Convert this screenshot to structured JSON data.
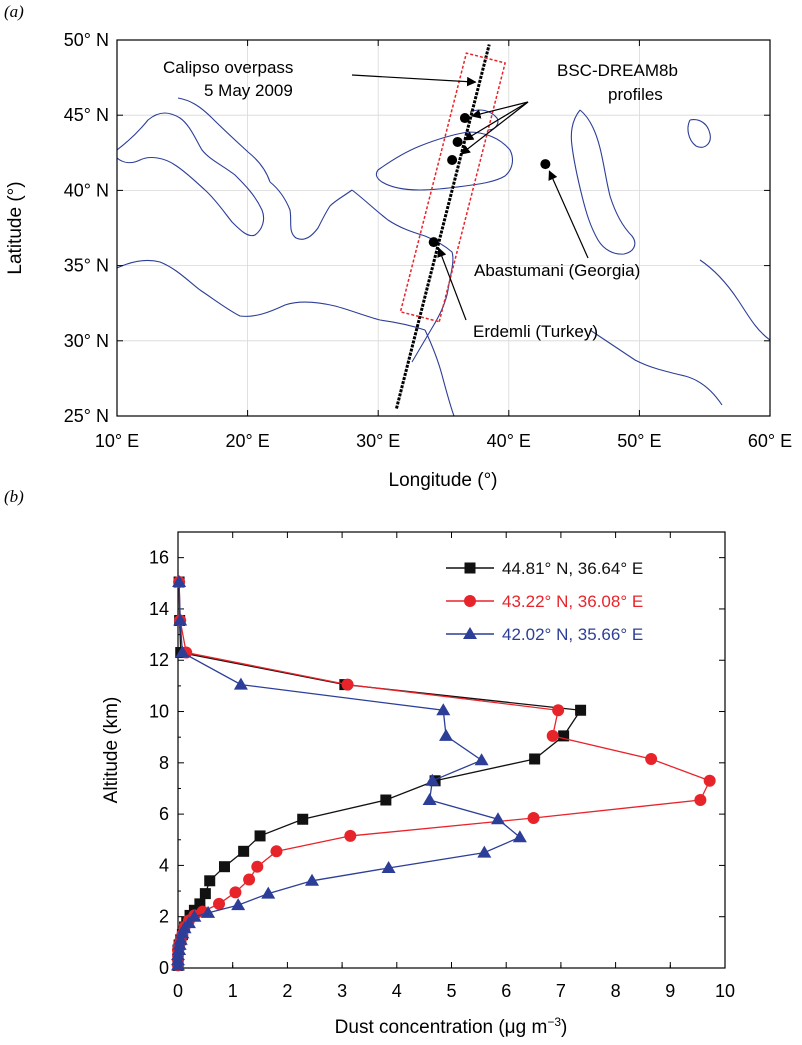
{
  "chart_data": [
    {
      "panel": "(a)",
      "type": "map",
      "xlabel": "Longitude (°)",
      "ylabel": "Latitude (°)",
      "xlim": [
        10,
        60
      ],
      "ylim": [
        25,
        50
      ],
      "x_tick_labels": [
        "10° E",
        "20° E",
        "30° E",
        "40° E",
        "50° E",
        "60° E"
      ],
      "y_tick_labels": [
        "25° N",
        "30° N",
        "35° N",
        "40° N",
        "45° N",
        "50° N"
      ],
      "annotations": [
        {
          "text": "Calipso overpass",
          "name": "calipso-label-line1"
        },
        {
          "text": "5 May 2009",
          "name": "calipso-label-line2"
        },
        {
          "text": "BSC-DREAM8b",
          "name": "bsc-label-line1"
        },
        {
          "text": "profiles",
          "name": "bsc-label-line2"
        },
        {
          "text": "Abastumani (Georgia)",
          "name": "abastumani-label"
        },
        {
          "text": "Erdemli (Turkey)",
          "name": "erdemli-label"
        }
      ],
      "track": {
        "start": [
          31.4,
          25.5
        ],
        "end": [
          38.5,
          49.7
        ],
        "color": "#000000"
      },
      "box_color": "#e8242b",
      "coastline_color": "#2c3e97",
      "points": [
        {
          "name": "BSC-DREAM8b profile 1",
          "lon": 36.64,
          "lat": 44.81
        },
        {
          "name": "BSC-DREAM8b profile 2",
          "lon": 36.08,
          "lat": 43.22
        },
        {
          "name": "BSC-DREAM8b profile 3",
          "lon": 35.66,
          "lat": 42.02
        },
        {
          "name": "Abastumani (Georgia)",
          "lon": 42.8,
          "lat": 41.75
        },
        {
          "name": "Erdemli (Turkey)",
          "lon": 34.25,
          "lat": 36.56
        }
      ]
    },
    {
      "panel": "(b)",
      "type": "line",
      "xlabel": "Dust concentration (μg m",
      "xlabel_sup": "−3",
      "xlabel_end": ")",
      "ylabel": "Altitude (km)",
      "xlim": [
        0,
        10
      ],
      "ylim": [
        0,
        17
      ],
      "x_ticks": [
        0,
        1,
        2,
        3,
        4,
        5,
        6,
        7,
        8,
        9,
        10
      ],
      "y_ticks": [
        0,
        2,
        4,
        6,
        8,
        10,
        12,
        14,
        16
      ],
      "legend_position": "top-right",
      "series": [
        {
          "name": "44.81° N, 36.64° E",
          "color": "#111111",
          "marker": "square",
          "x": [
            0,
            0,
            0,
            0,
            0.02,
            0.05,
            0.08,
            0.12,
            0.16,
            0.22,
            0.3,
            0.4,
            0.5,
            0.58,
            0.85,
            1.2,
            1.5,
            2.28,
            3.8,
            4.7,
            6.52,
            7.05,
            7.36,
            3.05,
            0.05,
            0.03,
            0.02
          ],
          "y": [
            0.1,
            0.3,
            0.5,
            0.7,
            0.9,
            1.1,
            1.3,
            1.6,
            1.8,
            2.05,
            2.25,
            2.5,
            2.9,
            3.4,
            3.95,
            4.55,
            5.15,
            5.8,
            6.55,
            7.3,
            8.15,
            9.05,
            10.05,
            11.05,
            12.3,
            13.55,
            15.05
          ]
        },
        {
          "name": "43.22° N, 36.08° E",
          "color": "#e8242b",
          "marker": "circle",
          "x": [
            0,
            0,
            0,
            0,
            0.02,
            0.05,
            0.08,
            0.12,
            0.2,
            0.3,
            0.45,
            0.75,
            1.05,
            1.3,
            1.45,
            1.8,
            3.15,
            6.5,
            9.55,
            9.72,
            8.65,
            6.85,
            6.95,
            3.1,
            0.15,
            0.04,
            0.02
          ],
          "y": [
            0.1,
            0.3,
            0.5,
            0.7,
            0.9,
            1.1,
            1.3,
            1.6,
            1.85,
            2.05,
            2.2,
            2.5,
            2.95,
            3.45,
            3.95,
            4.55,
            5.15,
            5.85,
            6.55,
            7.3,
            8.15,
            9.05,
            10.05,
            11.05,
            12.3,
            13.55,
            15.05
          ]
        },
        {
          "name": "42.02° N, 35.66° E",
          "color": "#2c3e97",
          "marker": "triangle",
          "x": [
            0,
            0,
            0,
            0.02,
            0.03,
            0.05,
            0.08,
            0.12,
            0.2,
            0.3,
            0.55,
            1.1,
            1.65,
            2.45,
            3.85,
            5.6,
            6.25,
            5.85,
            4.6,
            4.65,
            5.55,
            4.9,
            4.85,
            1.15,
            0.08,
            0.04,
            0.02
          ],
          "y": [
            0.1,
            0.3,
            0.5,
            0.7,
            0.9,
            1.1,
            1.35,
            1.55,
            1.75,
            2.0,
            2.15,
            2.45,
            2.9,
            3.4,
            3.9,
            4.5,
            5.1,
            5.8,
            6.55,
            7.3,
            8.1,
            9.05,
            10.05,
            11.05,
            12.3,
            13.55,
            15.05
          ]
        }
      ]
    }
  ]
}
